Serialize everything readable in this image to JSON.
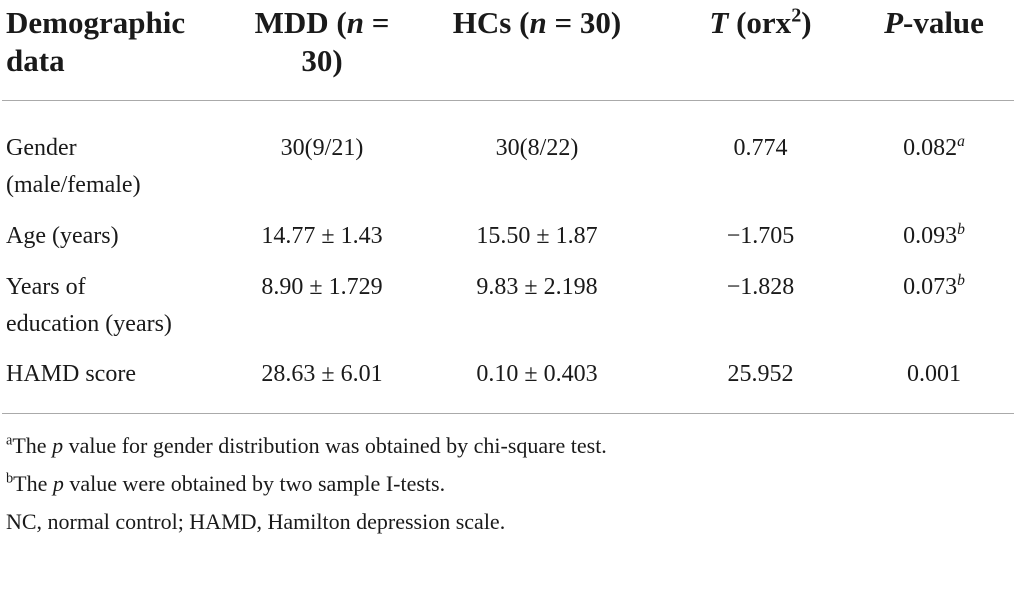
{
  "table": {
    "columns": [
      [
        {
          "text": "Demographic data"
        }
      ],
      [
        {
          "text": "MDD ("
        },
        {
          "text": "n",
          "italic": true
        },
        {
          "text": " = 30)"
        }
      ],
      [
        {
          "text": "HCs ("
        },
        {
          "text": "n",
          "italic": true
        },
        {
          "text": " = 30)"
        }
      ],
      [
        {
          "text": "T",
          "italic": true
        },
        {
          "text": " (orx"
        },
        {
          "text": "2",
          "sup": true
        },
        {
          "text": ")"
        }
      ],
      [
        {
          "text": "P",
          "italic": true
        },
        {
          "text": "-value"
        }
      ]
    ],
    "rows": [
      [
        "Gender (male/female)",
        "30(9/21)",
        "30(8/22)",
        "0.774",
        {
          "text": "0.082",
          "note": "a"
        }
      ],
      [
        "Age (years)",
        "14.77 ± 1.43",
        "15.50 ± 1.87",
        "−1.705",
        {
          "text": "0.093",
          "note": "b"
        }
      ],
      [
        "Years of education (years)",
        "8.90 ± 1.729",
        "9.83 ± 2.198",
        "−1.828",
        {
          "text": "0.073",
          "note": "b"
        }
      ],
      [
        "HAMD score",
        "28.63 ± 6.01",
        "0.10 ± 0.403",
        "25.952",
        "0.001"
      ]
    ]
  },
  "footnotes": [
    [
      {
        "text": "a",
        "sup": true
      },
      {
        "text": "The "
      },
      {
        "text": "p",
        "italic": true
      },
      {
        "text": " value for gender distribution was obtained by chi-square test."
      }
    ],
    [
      {
        "text": "b",
        "sup": true
      },
      {
        "text": "The "
      },
      {
        "text": "p",
        "italic": true
      },
      {
        "text": " value were obtained by two sample I-tests."
      }
    ],
    [
      {
        "text": "NC, normal control; HAMD, Hamilton depression scale."
      }
    ]
  ]
}
